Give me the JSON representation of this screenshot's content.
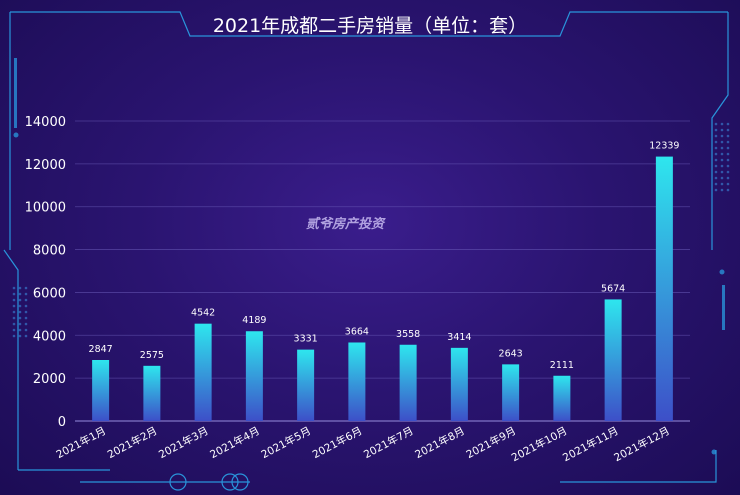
{
  "chart_data": {
    "type": "bar",
    "title": "2021年成都二手房销量（单位：套）",
    "categories": [
      "2021年1月",
      "2021年2月",
      "2021年3月",
      "2021年4月",
      "2021年5月",
      "2021年6月",
      "2021年7月",
      "2021年8月",
      "2021年9月",
      "2021年10月",
      "2021年11月",
      "2021年12月"
    ],
    "values": [
      2847,
      2575,
      4542,
      4189,
      3331,
      3664,
      3558,
      3414,
      2643,
      2111,
      5674,
      12339
    ],
    "yticks": [
      0,
      2000,
      4000,
      6000,
      8000,
      10000,
      12000,
      14000
    ],
    "ylim": [
      0,
      14000
    ],
    "grid": true,
    "legend": "none"
  },
  "watermark": "贰爷房产投资",
  "colors": {
    "background": "#2a1470",
    "bar_top": "#2ee6ee",
    "bar_bottom": "#3d4fc8",
    "grid": "#6a5bb8",
    "frame_accent": "#2aa3e8"
  }
}
